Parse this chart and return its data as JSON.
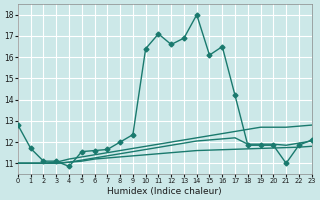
{
  "xlabel": "Humidex (Indice chaleur)",
  "bg_color": "#cce8e8",
  "grid_color": "#ffffff",
  "line_color": "#1a7a6e",
  "xlim": [
    0,
    23
  ],
  "ylim": [
    10.5,
    18.5
  ],
  "yticks": [
    11,
    12,
    13,
    14,
    15,
    16,
    17,
    18
  ],
  "xticks": [
    0,
    1,
    2,
    3,
    4,
    5,
    6,
    7,
    8,
    9,
    10,
    11,
    12,
    13,
    14,
    15,
    16,
    17,
    18,
    19,
    20,
    21,
    22,
    23
  ],
  "series": [
    {
      "x": [
        0,
        1,
        2,
        3,
        4,
        5,
        6,
        7,
        8,
        9,
        10,
        11,
        12,
        13,
        14,
        15,
        16,
        17,
        18,
        19,
        20,
        21,
        22,
        23
      ],
      "y": [
        12.8,
        11.7,
        11.1,
        11.1,
        10.85,
        11.55,
        11.6,
        11.65,
        12.0,
        12.35,
        16.4,
        17.1,
        16.6,
        16.9,
        18.0,
        16.1,
        16.5,
        14.2,
        11.85,
        11.85,
        11.85,
        11.0,
        11.85,
        12.1
      ],
      "style": "-",
      "marker": "D",
      "markersize": 2.5,
      "linewidth": 1.0
    },
    {
      "x": [
        0,
        1,
        2,
        3,
        4,
        5,
        6,
        7,
        8,
        9,
        10,
        11,
        12,
        13,
        14,
        15,
        16,
        17,
        18,
        19,
        20,
        21,
        22,
        23
      ],
      "y": [
        11.0,
        11.0,
        11.0,
        11.05,
        11.2,
        11.3,
        11.4,
        11.5,
        11.6,
        11.7,
        11.8,
        11.9,
        12.0,
        12.1,
        12.2,
        12.3,
        12.4,
        12.5,
        12.6,
        12.7,
        12.7,
        12.7,
        12.75,
        12.8
      ],
      "style": "-",
      "marker": null,
      "markersize": 0,
      "linewidth": 1.0
    },
    {
      "x": [
        0,
        1,
        2,
        3,
        4,
        5,
        6,
        7,
        8,
        9,
        10,
        11,
        12,
        13,
        14,
        15,
        16,
        17,
        18,
        19,
        20,
        21,
        22,
        23
      ],
      "y": [
        11.0,
        11.0,
        11.0,
        11.0,
        11.05,
        11.15,
        11.25,
        11.35,
        11.45,
        11.55,
        11.65,
        11.75,
        11.85,
        11.95,
        12.05,
        12.1,
        12.15,
        12.2,
        11.9,
        11.9,
        11.9,
        11.85,
        11.95,
        12.05
      ],
      "style": "-",
      "marker": null,
      "markersize": 0,
      "linewidth": 1.0
    },
    {
      "x": [
        0,
        1,
        2,
        3,
        4,
        5,
        6,
        7,
        8,
        9,
        10,
        11,
        12,
        13,
        14,
        15,
        16,
        17,
        18,
        19,
        20,
        21,
        22,
        23
      ],
      "y": [
        11.0,
        11.0,
        11.0,
        11.0,
        11.05,
        11.1,
        11.2,
        11.25,
        11.3,
        11.35,
        11.4,
        11.45,
        11.5,
        11.55,
        11.6,
        11.62,
        11.64,
        11.66,
        11.68,
        11.7,
        11.72,
        11.74,
        11.76,
        11.8
      ],
      "style": "-",
      "marker": null,
      "markersize": 0,
      "linewidth": 1.0
    }
  ]
}
